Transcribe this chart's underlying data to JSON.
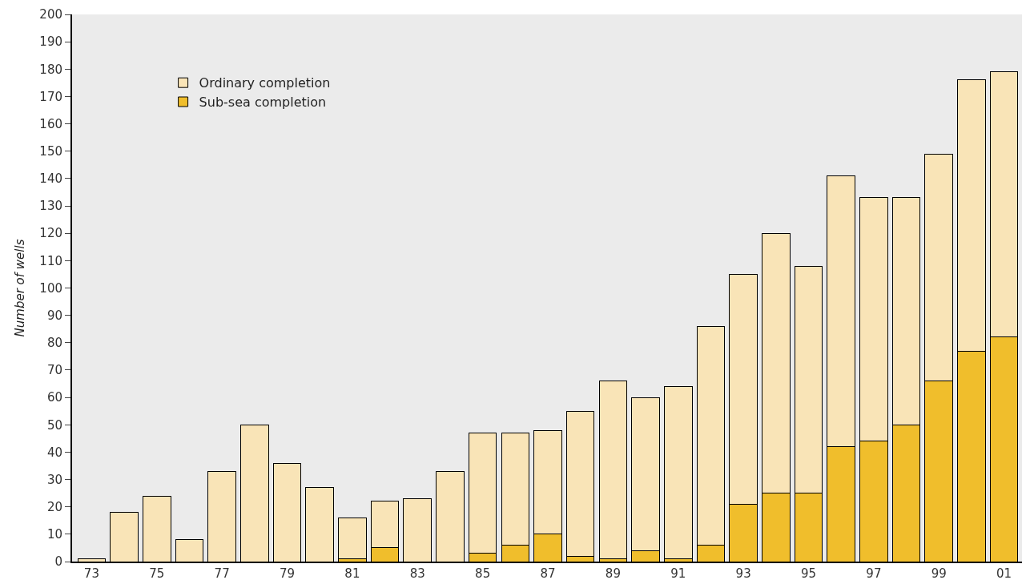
{
  "chart_data": {
    "type": "bar",
    "stacked": true,
    "ylabel": "Number of wells",
    "categories": [
      "73",
      null,
      "75",
      null,
      "77",
      null,
      "79",
      null,
      "81",
      null,
      "83",
      null,
      "85",
      null,
      "87",
      null,
      "89",
      null,
      "91",
      null,
      "93",
      null,
      "95",
      null,
      "97",
      null,
      "99",
      null,
      "01"
    ],
    "series": [
      {
        "name": "Sub-sea completion",
        "color": "#f0be2c",
        "values": [
          0,
          0,
          0,
          0,
          0,
          0,
          0,
          0,
          1,
          5,
          0,
          0,
          3,
          6,
          10,
          2,
          1,
          4,
          1,
          6,
          21,
          25,
          25,
          42,
          44,
          50,
          66,
          77,
          82
        ]
      },
      {
        "name": "Ordinary completion",
        "color": "#f9e4b7",
        "values": [
          1,
          18,
          24,
          8,
          33,
          50,
          36,
          27,
          15,
          17,
          23,
          33,
          44,
          41,
          38,
          53,
          65,
          56,
          63,
          80,
          84,
          95,
          83,
          99,
          89,
          83,
          83,
          99,
          97
        ]
      }
    ],
    "ylim": [
      0,
      200
    ],
    "yticks": [
      0,
      10,
      20,
      30,
      40,
      50,
      60,
      70,
      80,
      90,
      100,
      110,
      120,
      130,
      140,
      150,
      160,
      170,
      180,
      190,
      200
    ],
    "grid": false,
    "legend": "top left"
  }
}
